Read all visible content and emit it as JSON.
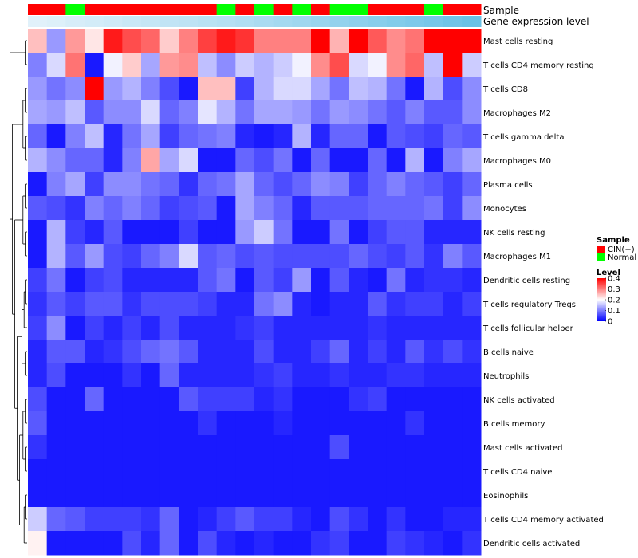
{
  "chart_data": {
    "type": "heatmap",
    "annotation_labels": [
      "Sample",
      "Gene expression level"
    ],
    "sample_groups": [
      "CIN(+)",
      "CIN(+)",
      "Normal",
      "CIN(+)",
      "CIN(+)",
      "CIN(+)",
      "CIN(+)",
      "CIN(+)",
      "CIN(+)",
      "CIN(+)",
      "Normal",
      "CIN(+)",
      "Normal",
      "CIN(+)",
      "Normal",
      "CIN(+)",
      "Normal",
      "Normal",
      "CIN(+)",
      "CIN(+)",
      "CIN(+)",
      "Normal",
      "CIN(+)",
      "CIN(+)"
    ],
    "expression_level": [
      0.05,
      0.08,
      0.12,
      0.15,
      0.18,
      0.22,
      0.25,
      0.28,
      0.3,
      0.33,
      0.36,
      0.4,
      0.44,
      0.48,
      0.52,
      0.56,
      0.6,
      0.64,
      0.68,
      0.72,
      0.76,
      0.8,
      0.85,
      0.9
    ],
    "rows": [
      "Mast cells resting",
      "T cells CD4 memory resting",
      "T cells CD8",
      "Macrophages M2",
      "T cells gamma delta",
      "Macrophages M0",
      "Plasma cells",
      "Monocytes",
      "NK cells resting",
      "Macrophages M1",
      "Dendritic cells resting",
      "T cells regulatory  Tregs",
      "T cells follicular helper",
      "B cells naive",
      "Neutrophils",
      "NK cells activated",
      "B cells memory",
      "Mast cells activated",
      "T cells CD4 naive",
      "Eosinophils",
      "T cells CD4 memory activated",
      "Dendritic cells activated"
    ],
    "values": [
      [
        0.25,
        0.12,
        0.28,
        0.22,
        0.38,
        0.34,
        0.32,
        0.24,
        0.3,
        0.35,
        0.38,
        0.36,
        0.3,
        0.3,
        0.3,
        0.4,
        0.26,
        0.4,
        0.33,
        0.29,
        0.31,
        0.4,
        0.4,
        0.4
      ],
      [
        0.1,
        0.17,
        0.31,
        0.02,
        0.19,
        0.24,
        0.13,
        0.28,
        0.29,
        0.15,
        0.11,
        0.16,
        0.14,
        0.16,
        0.19,
        0.29,
        0.34,
        0.17,
        0.19,
        0.29,
        0.32,
        0.15,
        0.4,
        0.16
      ],
      [
        0.12,
        0.09,
        0.11,
        0.4,
        0.12,
        0.14,
        0.1,
        0.06,
        0.02,
        0.25,
        0.25,
        0.05,
        0.14,
        0.17,
        0.17,
        0.13,
        0.09,
        0.15,
        0.14,
        0.09,
        0.02,
        0.14,
        0.06,
        0.11
      ],
      [
        0.13,
        0.12,
        0.15,
        0.07,
        0.11,
        0.11,
        0.17,
        0.08,
        0.1,
        0.18,
        0.14,
        0.09,
        0.13,
        0.13,
        0.12,
        0.09,
        0.12,
        0.11,
        0.09,
        0.07,
        0.1,
        0.07,
        0.07,
        0.11
      ],
      [
        0.08,
        0.02,
        0.1,
        0.15,
        0.03,
        0.09,
        0.13,
        0.05,
        0.08,
        0.09,
        0.1,
        0.03,
        0.02,
        0.03,
        0.14,
        0.03,
        0.08,
        0.08,
        0.02,
        0.07,
        0.06,
        0.05,
        0.08,
        0.07
      ],
      [
        0.14,
        0.11,
        0.08,
        0.08,
        0.03,
        0.1,
        0.27,
        0.13,
        0.17,
        0.02,
        0.02,
        0.08,
        0.06,
        0.09,
        0.02,
        0.08,
        0.02,
        0.02,
        0.08,
        0.02,
        0.14,
        0.02,
        0.1,
        0.13
      ],
      [
        0.02,
        0.1,
        0.13,
        0.05,
        0.11,
        0.11,
        0.09,
        0.08,
        0.04,
        0.08,
        0.09,
        0.13,
        0.08,
        0.06,
        0.08,
        0.11,
        0.1,
        0.05,
        0.08,
        0.1,
        0.08,
        0.07,
        0.05,
        0.08
      ],
      [
        0.07,
        0.06,
        0.04,
        0.1,
        0.08,
        0.1,
        0.08,
        0.05,
        0.06,
        0.07,
        0.02,
        0.13,
        0.1,
        0.08,
        0.03,
        0.07,
        0.07,
        0.07,
        0.08,
        0.08,
        0.08,
        0.09,
        0.05,
        0.11
      ],
      [
        0.02,
        0.14,
        0.05,
        0.03,
        0.07,
        0.02,
        0.02,
        0.02,
        0.05,
        0.02,
        0.02,
        0.12,
        0.16,
        0.09,
        0.02,
        0.02,
        0.09,
        0.02,
        0.05,
        0.07,
        0.07,
        0.03,
        0.03,
        0.03
      ],
      [
        0.02,
        0.14,
        0.07,
        0.12,
        0.06,
        0.05,
        0.08,
        0.1,
        0.17,
        0.07,
        0.08,
        0.06,
        0.07,
        0.06,
        0.06,
        0.06,
        0.06,
        0.08,
        0.06,
        0.05,
        0.07,
        0.04,
        0.1,
        0.07
      ],
      [
        0.05,
        0.09,
        0.02,
        0.05,
        0.06,
        0.03,
        0.03,
        0.03,
        0.03,
        0.07,
        0.09,
        0.02,
        0.07,
        0.05,
        0.12,
        0.02,
        0.07,
        0.03,
        0.02,
        0.09,
        0.03,
        0.04,
        0.04,
        0.03
      ],
      [
        0.04,
        0.07,
        0.05,
        0.07,
        0.07,
        0.04,
        0.06,
        0.06,
        0.06,
        0.05,
        0.03,
        0.03,
        0.09,
        0.11,
        0.03,
        0.02,
        0.03,
        0.03,
        0.07,
        0.04,
        0.05,
        0.05,
        0.03,
        0.05
      ],
      [
        0.05,
        0.11,
        0.02,
        0.05,
        0.03,
        0.05,
        0.03,
        0.06,
        0.03,
        0.03,
        0.03,
        0.04,
        0.05,
        0.03,
        0.03,
        0.03,
        0.03,
        0.03,
        0.04,
        0.03,
        0.03,
        0.03,
        0.03,
        0.03
      ],
      [
        0.03,
        0.07,
        0.07,
        0.03,
        0.04,
        0.06,
        0.08,
        0.09,
        0.07,
        0.03,
        0.03,
        0.03,
        0.06,
        0.03,
        0.03,
        0.05,
        0.08,
        0.03,
        0.05,
        0.03,
        0.07,
        0.04,
        0.06,
        0.04
      ],
      [
        0.03,
        0.06,
        0.02,
        0.02,
        0.02,
        0.04,
        0.02,
        0.08,
        0.03,
        0.03,
        0.03,
        0.03,
        0.04,
        0.05,
        0.03,
        0.03,
        0.04,
        0.03,
        0.03,
        0.04,
        0.04,
        0.03,
        0.03,
        0.03
      ],
      [
        0.06,
        0.02,
        0.02,
        0.08,
        0.02,
        0.02,
        0.02,
        0.02,
        0.07,
        0.05,
        0.05,
        0.05,
        0.03,
        0.04,
        0.02,
        0.02,
        0.02,
        0.04,
        0.05,
        0.02,
        0.02,
        0.02,
        0.02,
        0.02
      ],
      [
        0.07,
        0.02,
        0.02,
        0.02,
        0.02,
        0.02,
        0.02,
        0.02,
        0.02,
        0.04,
        0.02,
        0.02,
        0.02,
        0.03,
        0.02,
        0.02,
        0.02,
        0.02,
        0.02,
        0.02,
        0.04,
        0.02,
        0.02,
        0.02
      ],
      [
        0.04,
        0.02,
        0.02,
        0.02,
        0.02,
        0.02,
        0.02,
        0.02,
        0.02,
        0.02,
        0.02,
        0.02,
        0.02,
        0.02,
        0.02,
        0.02,
        0.06,
        0.02,
        0.02,
        0.02,
        0.02,
        0.02,
        0.02,
        0.02
      ],
      [
        0.02,
        0.02,
        0.02,
        0.02,
        0.02,
        0.02,
        0.02,
        0.02,
        0.02,
        0.02,
        0.02,
        0.02,
        0.02,
        0.02,
        0.02,
        0.02,
        0.02,
        0.02,
        0.02,
        0.02,
        0.02,
        0.02,
        0.02,
        0.02
      ],
      [
        0.02,
        0.02,
        0.02,
        0.02,
        0.02,
        0.02,
        0.02,
        0.02,
        0.02,
        0.02,
        0.02,
        0.02,
        0.02,
        0.02,
        0.02,
        0.02,
        0.02,
        0.02,
        0.02,
        0.02,
        0.02,
        0.02,
        0.02,
        0.02
      ],
      [
        0.16,
        0.08,
        0.07,
        0.05,
        0.05,
        0.05,
        0.04,
        0.08,
        0.02,
        0.03,
        0.05,
        0.07,
        0.05,
        0.05,
        0.03,
        0.02,
        0.06,
        0.04,
        0.02,
        0.04,
        0.02,
        0.02,
        0.03,
        0.03
      ],
      [
        0.21,
        0.02,
        0.02,
        0.02,
        0.02,
        0.06,
        0.03,
        0.08,
        0.02,
        0.06,
        0.03,
        0.02,
        0.03,
        0.02,
        0.02,
        0.04,
        0.05,
        0.02,
        0.02,
        0.05,
        0.04,
        0.03,
        0.02,
        0.04
      ]
    ],
    "legend": {
      "sample_title": "Sample",
      "sample_entries": [
        {
          "label": "CIN(+)",
          "color": "#ff0000"
        },
        {
          "label": "Normal",
          "color": "#00ff00"
        }
      ],
      "level_title": "Level",
      "level_ticks": [
        "0.4",
        "0.3",
        "0.2",
        "0.1",
        "0"
      ],
      "level_tick_values": [
        0.4,
        0.3,
        0.2,
        0.1,
        0
      ],
      "level_range": [
        0,
        0.4
      ]
    },
    "colors": {
      "low": "#0000ff",
      "mid": "#ffffff",
      "high": "#ff0000",
      "expression_low": "#e8f4fb",
      "expression_high": "#5bbce4"
    },
    "dendrogram_leaf_order": [
      0,
      1,
      2,
      3,
      4,
      5,
      6,
      7,
      8,
      9,
      10,
      11,
      12,
      13,
      14,
      15,
      16,
      17,
      18,
      19,
      20,
      21
    ]
  }
}
